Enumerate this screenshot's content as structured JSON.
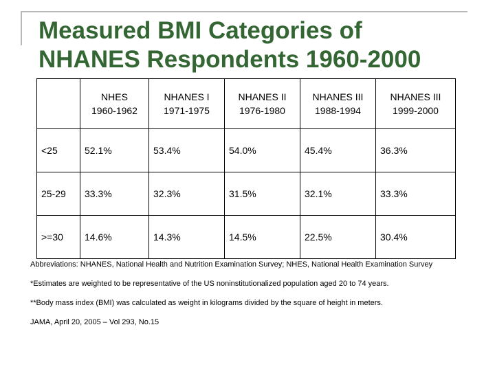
{
  "slide": {
    "title_line1": "Measured BMI Categories of",
    "title_line2": "NHANES Respondents 1960-2000",
    "title_color": "#336633"
  },
  "table": {
    "columns": [
      {
        "line1": "",
        "line2": ""
      },
      {
        "line1": "NHES",
        "line2": "1960-1962"
      },
      {
        "line1": "NHANES I",
        "line2": "1971-1975"
      },
      {
        "line1": "NHANES II",
        "line2": "1976-1980"
      },
      {
        "line1": "NHANES III",
        "line2": "1988-1994"
      },
      {
        "line1": "NHANES III",
        "line2": "1999-2000"
      }
    ],
    "rows": [
      {
        "category": "<25",
        "values": [
          "52.1%",
          "53.4%",
          "54.0%",
          "45.4%",
          "36.3%"
        ]
      },
      {
        "category": "25-29",
        "values": [
          "33.3%",
          "32.3%",
          "31.5%",
          "32.1%",
          "33.3%"
        ]
      },
      {
        "category": ">=30",
        "values": [
          "14.6%",
          "14.3%",
          "14.5%",
          "22.5%",
          "30.4%"
        ]
      }
    ]
  },
  "notes": {
    "abbreviations": "Abbreviations: NHANES, National Health and Nutrition Examination Survey; NHES, National Health Examination Survey",
    "estimates": "*Estimates are weighted to be representative of the US noninstitutionalized population aged 20 to 74 years.",
    "bmi": "**Body mass index (BMI) was calculated as weight in kilograms divided by the square of height in meters.",
    "source": "JAMA, April 20, 2005 – Vol 293, No.15"
  }
}
